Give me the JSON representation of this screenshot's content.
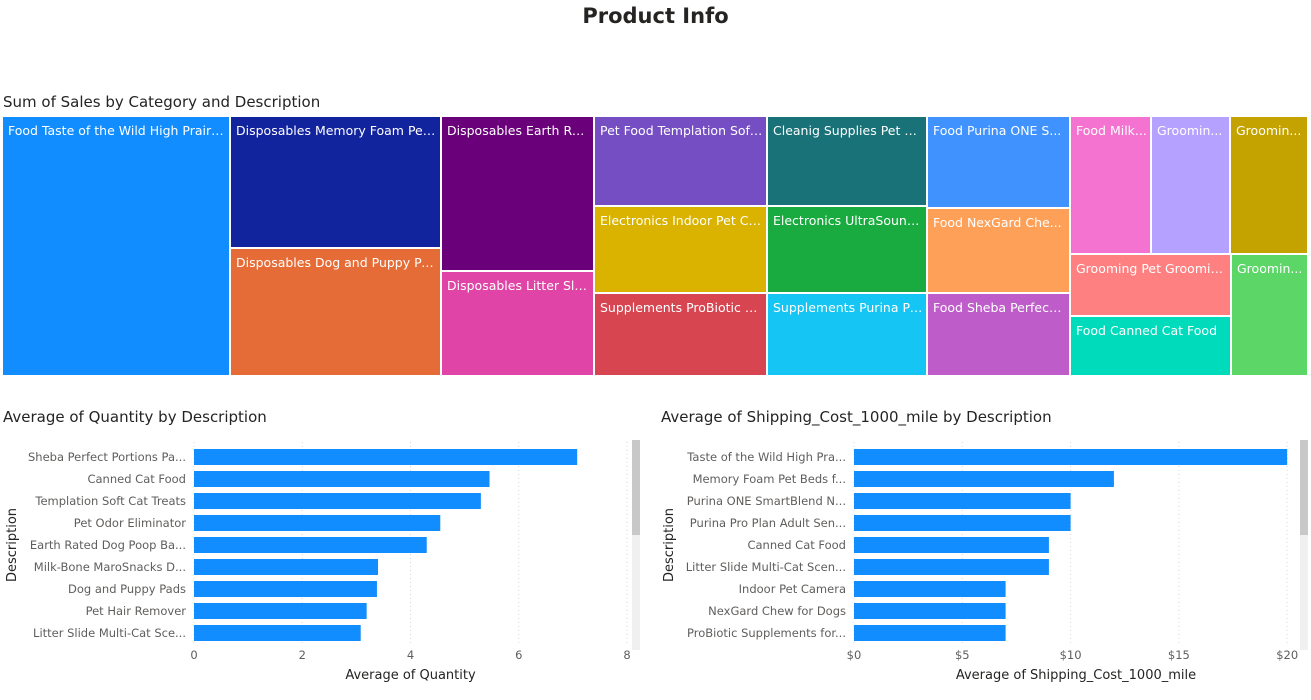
{
  "page": {
    "title": "Product Info"
  },
  "colors": {
    "bar": "#118DFF",
    "grid": "#d9d9d9",
    "text": "#605e5c",
    "axis_title": "#252423"
  },
  "chart_data": [
    {
      "id": "treemap",
      "type": "treemap",
      "title": "Sum of Sales by Category and Description",
      "tiles": [
        {
          "label": "Food Taste of the Wild High Prairi...",
          "color": "#118DFF"
        },
        {
          "label": "Disposables Memory Foam Pet...",
          "color": "#12239E"
        },
        {
          "label": "Disposables Dog and Puppy Pa...",
          "color": "#E66C37"
        },
        {
          "label": "Disposables Earth Rat...",
          "color": "#6B007B"
        },
        {
          "label": "Disposables Litter Slid...",
          "color": "#E044A7"
        },
        {
          "label": "Pet Food Templation Soft...",
          "color": "#744EC2"
        },
        {
          "label": "Electronics Indoor Pet Ca...",
          "color": "#D9B300"
        },
        {
          "label": "Supplements ProBiotic S...",
          "color": "#D64550"
        },
        {
          "label": "Cleanig Supplies Pet O...",
          "color": "#197278"
        },
        {
          "label": "Electronics UltraSound ...",
          "color": "#1AAB40"
        },
        {
          "label": "Supplements Purina Pr...",
          "color": "#15C6F4"
        },
        {
          "label": "Food Purina ONE S...",
          "color": "#4092FF"
        },
        {
          "label": "Food NexGard Che...",
          "color": "#FFA058"
        },
        {
          "label": "Food Sheba Perfect ...",
          "color": "#BE5DC9"
        },
        {
          "label": "Food Milk...",
          "color": "#F472D0"
        },
        {
          "label": "Groomin...",
          "color": "#B5A1FF"
        },
        {
          "label": "Groomin...",
          "color": "#C4A200"
        },
        {
          "label": "Grooming Pet Groomin...",
          "color": "#FF8080"
        },
        {
          "label": "Groomin...",
          "color": "#5BD667"
        },
        {
          "label": "Food Canned Cat Food",
          "color": "#00DBBC"
        }
      ]
    },
    {
      "id": "qty",
      "type": "bar",
      "orientation": "horizontal",
      "title": "Average of Quantity by Description",
      "xlabel": "Average of Quantity",
      "ylabel": "Description",
      "xlim": [
        0,
        8
      ],
      "xticks": [
        "0",
        "2",
        "4",
        "6",
        "8"
      ],
      "xtick_values": [
        0,
        2,
        4,
        6,
        8
      ],
      "categories": [
        "Sheba Perfect Portions Pa...",
        "Canned Cat Food",
        "Templation Soft Cat Treats",
        "Pet Odor Eliminator",
        "Earth Rated Dog Poop Ba...",
        "Milk-Bone MaroSnacks D...",
        "Dog and Puppy Pads",
        "Pet Hair Remover",
        "Litter Slide Multi-Cat Sce..."
      ],
      "values": [
        7.08,
        5.46,
        5.3,
        4.55,
        4.3,
        3.4,
        3.38,
        3.19,
        3.08
      ],
      "grid": true
    },
    {
      "id": "ship",
      "type": "bar",
      "orientation": "horizontal",
      "title": "Average of Shipping_Cost_1000_mile by Description",
      "xlabel": "Average of Shipping_Cost_1000_mile",
      "ylabel": "Description",
      "xlim": [
        0,
        20.5
      ],
      "xticks": [
        "$0",
        "$5",
        "$10",
        "$15",
        "$20"
      ],
      "xtick_values": [
        0,
        5,
        10,
        15,
        20
      ],
      "categories": [
        "Taste of the Wild High Pra...",
        "Memory Foam Pet Beds f...",
        "Purina ONE SmartBlend N...",
        "Purina Pro Plan Adult Sen...",
        "Canned Cat Food",
        "Litter Slide Multi-Cat Scen...",
        "Indoor Pet Camera",
        "NexGard Chew for Dogs",
        "ProBiotic Supplements for..."
      ],
      "values": [
        20,
        12,
        10,
        10,
        9,
        9,
        7,
        7,
        7
      ],
      "grid": true
    }
  ]
}
